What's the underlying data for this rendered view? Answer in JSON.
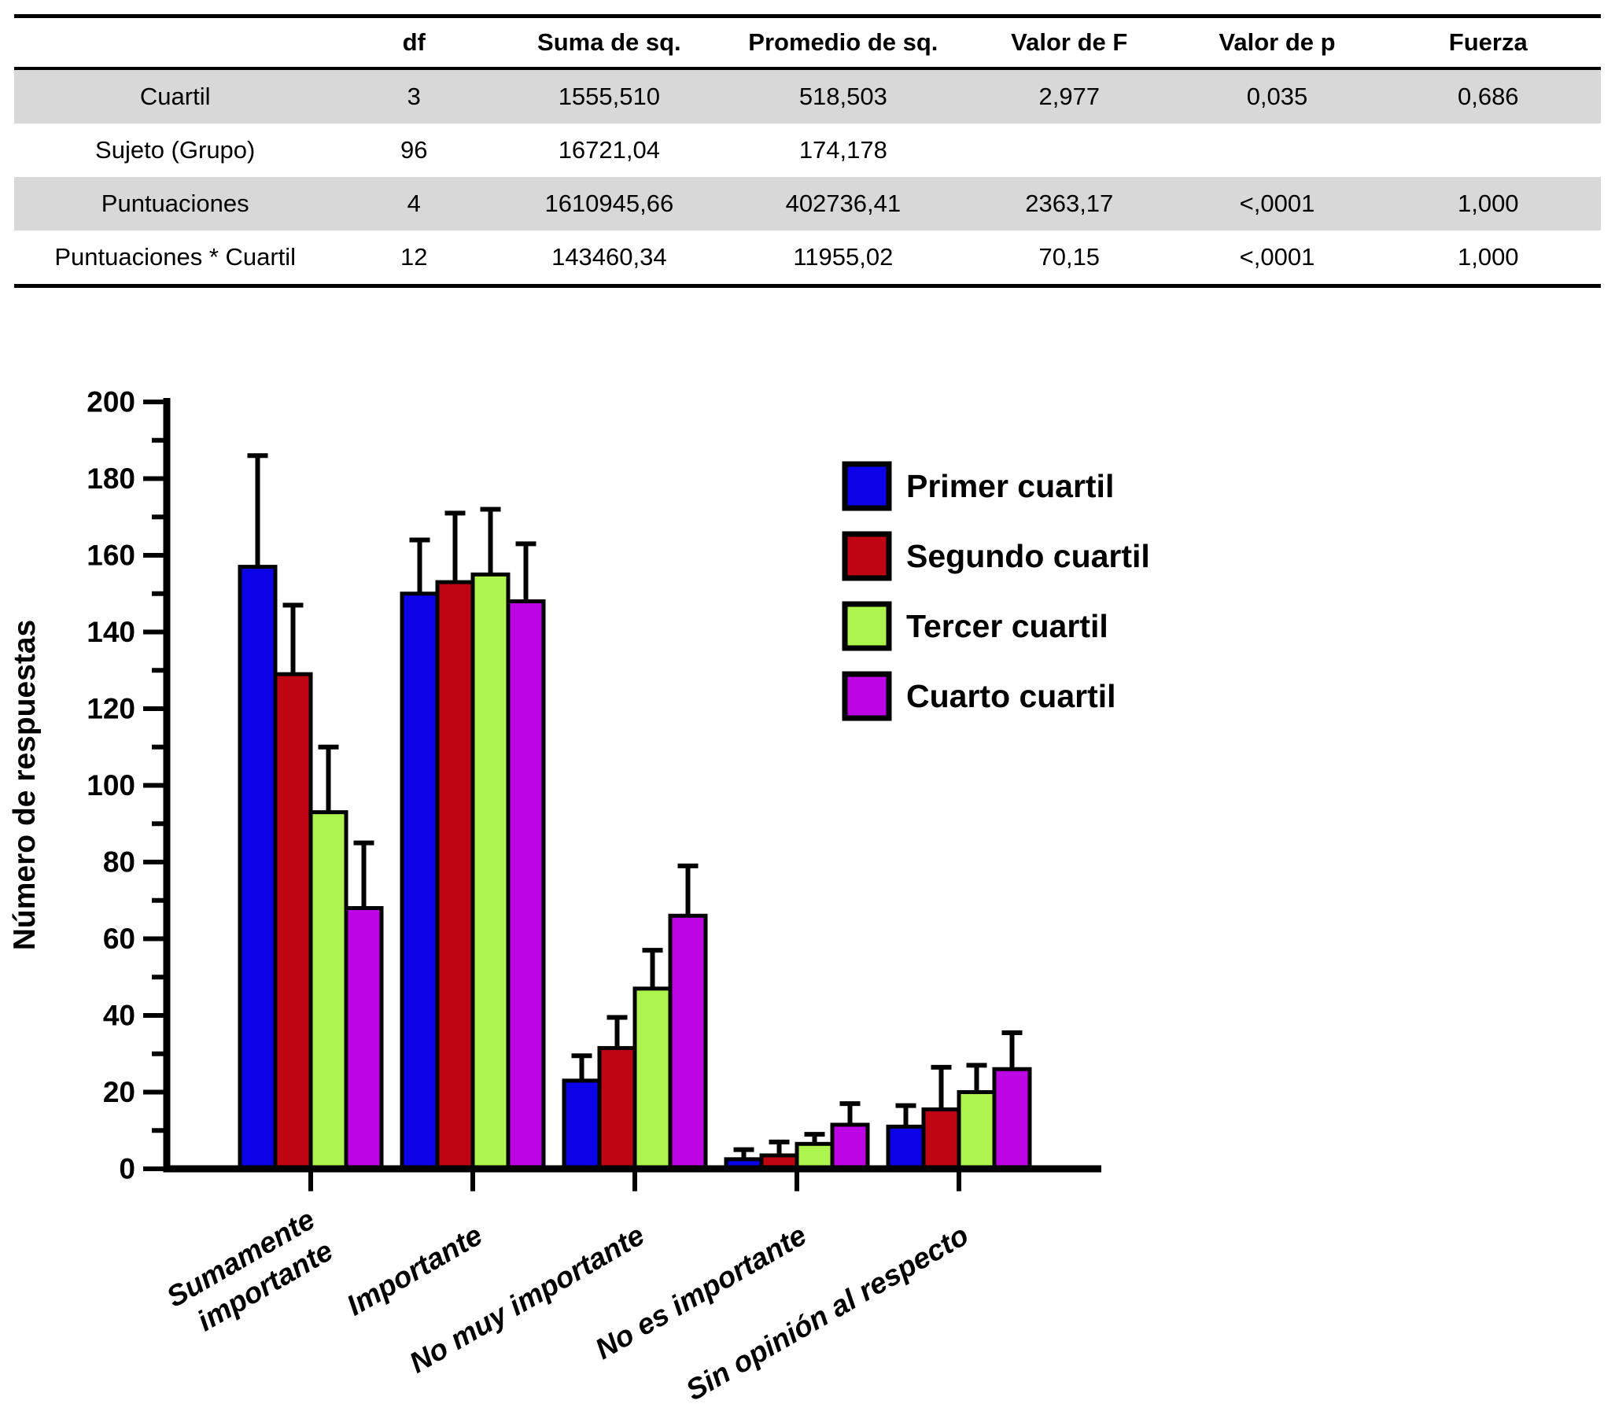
{
  "table": {
    "columns": [
      "",
      "df",
      "Suma de sq.",
      "Promedio de sq.",
      "Valor de F",
      "Valor de p",
      "Fuerza"
    ],
    "rows": [
      {
        "label": "Cuartil",
        "cells": [
          "3",
          "1555,510",
          "518,503",
          "2,977",
          "0,035",
          "0,686"
        ],
        "shaded": true
      },
      {
        "label": "Sujeto (Grupo)",
        "cells": [
          "96",
          "16721,04",
          "174,178",
          "",
          "",
          ""
        ],
        "shaded": false
      },
      {
        "label": "Puntuaciones",
        "cells": [
          "4",
          "1610945,66",
          "402736,41",
          "2363,17",
          "<,0001",
          "1,000"
        ],
        "shaded": true
      },
      {
        "label": "Puntuaciones * Cuartil",
        "cells": [
          "12",
          "143460,34",
          "11955,02",
          "70,15",
          "<,0001",
          "1,000"
        ],
        "shaded": false
      }
    ],
    "shaded_row_color": "#d8d8d8"
  },
  "chart_data": {
    "type": "bar",
    "title": "",
    "ylabel": "Número de respuestas",
    "xlabel": "",
    "ylim": [
      0,
      200
    ],
    "ytick_step": 20,
    "minor_tick_step": 10,
    "grid": false,
    "legend_position": "upper-right-inside",
    "error_bars": "upper-only",
    "categories": [
      "Sumamente importante",
      "Importante",
      "No muy importante",
      "No es importante",
      "Sin opinión al respecto"
    ],
    "category_lines": [
      [
        "Sumamente",
        "importante"
      ],
      [
        "Importante"
      ],
      [
        "No muy importante"
      ],
      [
        "No es importante"
      ],
      [
        "Sin opinión al respecto"
      ]
    ],
    "series": [
      {
        "name": "Primer cuartil",
        "color": "#0b02e8",
        "values": [
          157,
          150,
          23,
          2.5,
          11
        ],
        "errors_upper": [
          29,
          14,
          6.5,
          2.5,
          5.5
        ]
      },
      {
        "name": "Segundo cuartil",
        "color": "#bf0414",
        "values": [
          129,
          153,
          31.5,
          3.5,
          15.5
        ],
        "errors_upper": [
          18,
          18,
          8,
          3.5,
          11
        ]
      },
      {
        "name": "Tercer cuartil",
        "color": "#aef44e",
        "values": [
          93,
          155,
          47,
          6.5,
          20
        ],
        "errors_upper": [
          17,
          17,
          10,
          2.5,
          7
        ]
      },
      {
        "name": "Cuarto cuartil",
        "color": "#bd04e4",
        "values": [
          68,
          148,
          66,
          11.5,
          26
        ],
        "errors_upper": [
          17,
          15,
          13,
          5.5,
          9.5
        ]
      }
    ],
    "axis_color": "#000000"
  }
}
